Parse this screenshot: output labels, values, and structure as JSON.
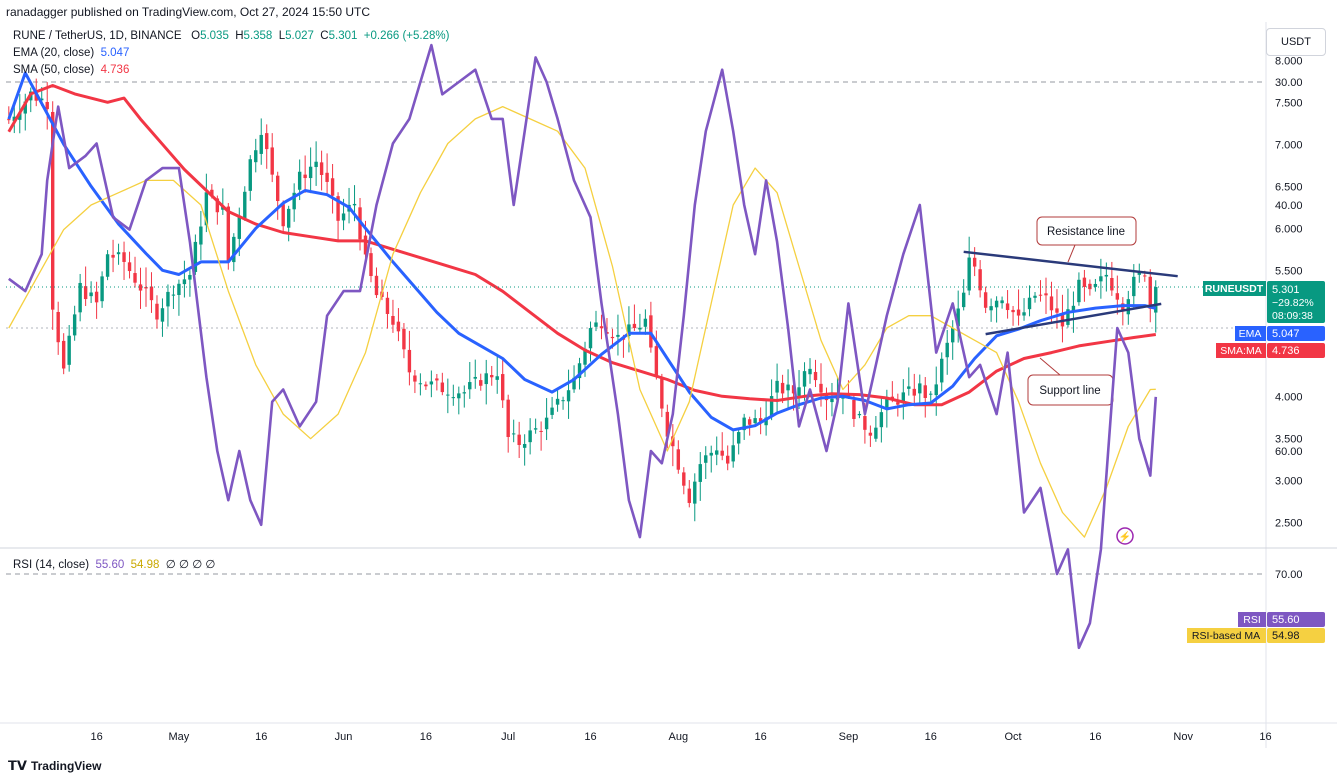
{
  "header": {
    "publisher": "ranadagger published on TradingView.com, Oct 27, 2024 15:50 UTC"
  },
  "legend": {
    "symbol": "RUNE / TetherUS, 1D, BINANCE",
    "o_label": "O",
    "o": "5.035",
    "h_label": "H",
    "h": "5.358",
    "l_label": "L",
    "l": "5.027",
    "c_label": "C",
    "c": "5.301",
    "change": "+0.266 (+5.28%)",
    "ema_label": "EMA (20, close)",
    "ema_value": "5.047",
    "sma_label": "SMA (50, close)",
    "sma_value": "4.736"
  },
  "currency": "USDT",
  "rsi_legend": {
    "label": "RSI (14, close)",
    "rsi": "55.60",
    "ma": "54.98",
    "extra": "∅ ∅ ∅ ∅"
  },
  "badges": {
    "symbol": "RUNEUSDT",
    "price": "5.301",
    "pct": "−29.82%",
    "countdown": "08:09:38",
    "ema_tag": "EMA",
    "ema": "5.047",
    "sma_tag": "SMA:MA",
    "sma": "4.736",
    "rsi_tag": "RSI",
    "rsi": "55.60",
    "rsima_tag": "RSI-based MA",
    "rsima": "54.98"
  },
  "annotations": {
    "resistance": "Resistance line",
    "support": "Support line"
  },
  "footer": {
    "brand": "TradingView"
  },
  "colors": {
    "up": "#089981",
    "down": "#f23645",
    "ema": "#2962ff",
    "sma": "#f23645",
    "rsi": "#7e57c2",
    "rsi_ma": "#f5d041",
    "trend": "#2a3a7a"
  },
  "chart_data": {
    "type": "candlestick",
    "price_axis": {
      "ticks": [
        8.0,
        7.5,
        7.0,
        6.5,
        6.0,
        5.5,
        5.0,
        4.5,
        4.0,
        3.5,
        3.0,
        2.5
      ],
      "tick_labels": [
        "8.000",
        "7.500",
        "7.000",
        "6.500",
        "6.000",
        "5.500",
        "",
        "",
        "4.000",
        "3.500",
        "3.000",
        "2.500"
      ]
    },
    "rsi_axis": {
      "ticks": [
        70,
        60,
        50,
        40,
        30
      ],
      "tick_labels": [
        "70.00",
        "60.00",
        "",
        "40.00",
        "30.00"
      ],
      "band": [
        30,
        70
      ]
    },
    "x_labels": [
      {
        "day": 16,
        "label": "16"
      },
      {
        "day": 31,
        "label": "May"
      },
      {
        "day": 46,
        "label": "16"
      },
      {
        "day": 61,
        "label": "Jun"
      },
      {
        "day": 76,
        "label": "16"
      },
      {
        "day": 91,
        "label": "Jul"
      },
      {
        "day": 106,
        "label": "16"
      },
      {
        "day": 122,
        "label": "Aug"
      },
      {
        "day": 137,
        "label": "16"
      },
      {
        "day": 153,
        "label": "Sep"
      },
      {
        "day": 168,
        "label": "16"
      },
      {
        "day": 183,
        "label": "Oct"
      },
      {
        "day": 198,
        "label": "16"
      },
      {
        "day": 214,
        "label": "Nov"
      },
      {
        "day": 229,
        "label": "16"
      }
    ],
    "close_points": [
      [
        0,
        7.3
      ],
      [
        4,
        7.6
      ],
      [
        7,
        7.5
      ],
      [
        8,
        5.1
      ],
      [
        10,
        4.3
      ],
      [
        13,
        5.3
      ],
      [
        16,
        5.1
      ],
      [
        18,
        5.7
      ],
      [
        21,
        5.6
      ],
      [
        24,
        5.3
      ],
      [
        27,
        5.0
      ],
      [
        30,
        5.3
      ],
      [
        33,
        5.45
      ],
      [
        36,
        6.4
      ],
      [
        39,
        6.2
      ],
      [
        40,
        5.6
      ],
      [
        44,
        6.8
      ],
      [
        46,
        7.2
      ],
      [
        48,
        6.6
      ],
      [
        50,
        6.1
      ],
      [
        53,
        6.6
      ],
      [
        56,
        6.8
      ],
      [
        58,
        6.5
      ],
      [
        60,
        6.1
      ],
      [
        63,
        6.3
      ],
      [
        65,
        5.6
      ],
      [
        67,
        5.2
      ],
      [
        70,
        4.9
      ],
      [
        73,
        4.3
      ],
      [
        76,
        4.15
      ],
      [
        79,
        4.1
      ],
      [
        83,
        4.05
      ],
      [
        86,
        4.2
      ],
      [
        89,
        4.3
      ],
      [
        91,
        3.5
      ],
      [
        93,
        3.45
      ],
      [
        96,
        3.6
      ],
      [
        98,
        3.7
      ],
      [
        100,
        3.9
      ],
      [
        103,
        4.2
      ],
      [
        106,
        4.8
      ],
      [
        108,
        4.9
      ],
      [
        111,
        4.7
      ],
      [
        114,
        4.8
      ],
      [
        116,
        4.9
      ],
      [
        117,
        4.5
      ],
      [
        120,
        3.6
      ],
      [
        122,
        3.2
      ],
      [
        124,
        2.8
      ],
      [
        126,
        3.2
      ],
      [
        129,
        3.4
      ],
      [
        131,
        3.2
      ],
      [
        134,
        3.7
      ],
      [
        137,
        3.7
      ],
      [
        140,
        4.1
      ],
      [
        143,
        4.05
      ],
      [
        146,
        4.4
      ],
      [
        149,
        4.0
      ],
      [
        152,
        4.05
      ],
      [
        155,
        3.7
      ],
      [
        157,
        3.6
      ],
      [
        160,
        3.9
      ],
      [
        163,
        4.0
      ],
      [
        166,
        4.1
      ],
      [
        168,
        3.95
      ],
      [
        170,
        4.4
      ],
      [
        172,
        4.8
      ],
      [
        174,
        5.2
      ],
      [
        175,
        5.6
      ],
      [
        176,
        5.55
      ],
      [
        178,
        5.1
      ],
      [
        181,
        5.2
      ],
      [
        184,
        4.9
      ],
      [
        187,
        5.2
      ],
      [
        189,
        5.15
      ],
      [
        192,
        4.85
      ],
      [
        195,
        5.3
      ],
      [
        197,
        5.2
      ],
      [
        200,
        5.45
      ],
      [
        203,
        5.1
      ],
      [
        205,
        5.35
      ],
      [
        207,
        5.5
      ],
      [
        208,
        5.06
      ],
      [
        209,
        5.301
      ]
    ],
    "ema20_points": [
      [
        0,
        7.3
      ],
      [
        3,
        7.85
      ],
      [
        10,
        7.0
      ],
      [
        15,
        6.5
      ],
      [
        20,
        6.05
      ],
      [
        25,
        5.7
      ],
      [
        28,
        5.5
      ],
      [
        31,
        5.45
      ],
      [
        35,
        5.6
      ],
      [
        40,
        5.6
      ],
      [
        45,
        6.0
      ],
      [
        50,
        6.3
      ],
      [
        54,
        6.45
      ],
      [
        58,
        6.4
      ],
      [
        62,
        6.25
      ],
      [
        65,
        6.0
      ],
      [
        70,
        5.6
      ],
      [
        74,
        5.3
      ],
      [
        78,
        5.0
      ],
      [
        82,
        4.75
      ],
      [
        86,
        4.6
      ],
      [
        90,
        4.45
      ],
      [
        94,
        4.2
      ],
      [
        99,
        4.05
      ],
      [
        103,
        4.2
      ],
      [
        108,
        4.5
      ],
      [
        113,
        4.75
      ],
      [
        117,
        4.75
      ],
      [
        120,
        4.45
      ],
      [
        124,
        4.05
      ],
      [
        128,
        3.75
      ],
      [
        132,
        3.6
      ],
      [
        136,
        3.65
      ],
      [
        140,
        3.8
      ],
      [
        144,
        3.9
      ],
      [
        148,
        3.98
      ],
      [
        152,
        4.0
      ],
      [
        156,
        3.95
      ],
      [
        160,
        3.85
      ],
      [
        164,
        3.9
      ],
      [
        168,
        3.92
      ],
      [
        172,
        4.12
      ],
      [
        176,
        4.45
      ],
      [
        180,
        4.72
      ],
      [
        184,
        4.8
      ],
      [
        188,
        4.9
      ],
      [
        193,
        5.0
      ],
      [
        198,
        5.05
      ],
      [
        203,
        5.08
      ],
      [
        207,
        5.08
      ],
      [
        209,
        5.047
      ]
    ],
    "sma50_points": [
      [
        0,
        7.15
      ],
      [
        4,
        7.6
      ],
      [
        8,
        7.7
      ],
      [
        12,
        7.6
      ],
      [
        18,
        7.5
      ],
      [
        21,
        7.55
      ],
      [
        24,
        7.3
      ],
      [
        28,
        7.0
      ],
      [
        32,
        6.7
      ],
      [
        36,
        6.45
      ],
      [
        40,
        6.2
      ],
      [
        45,
        6.05
      ],
      [
        50,
        5.95
      ],
      [
        55,
        5.9
      ],
      [
        60,
        5.85
      ],
      [
        65,
        5.85
      ],
      [
        70,
        5.75
      ],
      [
        75,
        5.65
      ],
      [
        80,
        5.55
      ],
      [
        85,
        5.45
      ],
      [
        90,
        5.25
      ],
      [
        95,
        5.0
      ],
      [
        100,
        4.75
      ],
      [
        105,
        4.55
      ],
      [
        110,
        4.4
      ],
      [
        115,
        4.3
      ],
      [
        120,
        4.2
      ],
      [
        125,
        4.07
      ],
      [
        130,
        4.0
      ],
      [
        135,
        3.97
      ],
      [
        140,
        3.95
      ],
      [
        145,
        4.0
      ],
      [
        150,
        4.03
      ],
      [
        155,
        4.02
      ],
      [
        160,
        3.98
      ],
      [
        165,
        3.9
      ],
      [
        170,
        3.9
      ],
      [
        175,
        4.05
      ],
      [
        180,
        4.3
      ],
      [
        185,
        4.45
      ],
      [
        190,
        4.52
      ],
      [
        195,
        4.6
      ],
      [
        200,
        4.65
      ],
      [
        205,
        4.7
      ],
      [
        209,
        4.736
      ]
    ],
    "rsi_points": [
      [
        0,
        46
      ],
      [
        3,
        47
      ],
      [
        6,
        44
      ],
      [
        7,
        38
      ],
      [
        9,
        32
      ],
      [
        11,
        37
      ],
      [
        14,
        36
      ],
      [
        16,
        35
      ],
      [
        19,
        41
      ],
      [
        22,
        42
      ],
      [
        25,
        38
      ],
      [
        28,
        37
      ],
      [
        31,
        37
      ],
      [
        33,
        43
      ],
      [
        36,
        54
      ],
      [
        38,
        60
      ],
      [
        40,
        64
      ],
      [
        42,
        60
      ],
      [
        44,
        64
      ],
      [
        46,
        66
      ],
      [
        48,
        56
      ],
      [
        50,
        55
      ],
      [
        53,
        58
      ],
      [
        56,
        56
      ],
      [
        58,
        49
      ],
      [
        61,
        47
      ],
      [
        64,
        47
      ],
      [
        67,
        40
      ],
      [
        70,
        35
      ],
      [
        73,
        33
      ],
      [
        75,
        30
      ],
      [
        77,
        27
      ],
      [
        79,
        31
      ],
      [
        82,
        30
      ],
      [
        85,
        29
      ],
      [
        88,
        33
      ],
      [
        90,
        33
      ],
      [
        92,
        40
      ],
      [
        94,
        34
      ],
      [
        96,
        28
      ],
      [
        98,
        30
      ],
      [
        100,
        33
      ],
      [
        103,
        38
      ],
      [
        106,
        41
      ],
      [
        108,
        48
      ],
      [
        111,
        57
      ],
      [
        113,
        64
      ],
      [
        115,
        67
      ],
      [
        117,
        60
      ],
      [
        119,
        61
      ],
      [
        121,
        57
      ],
      [
        123,
        49
      ],
      [
        125,
        40
      ],
      [
        127,
        34
      ],
      [
        130,
        29
      ],
      [
        132,
        34
      ],
      [
        134,
        40
      ],
      [
        136,
        44
      ],
      [
        138,
        38
      ],
      [
        140,
        43
      ],
      [
        142,
        50
      ],
      [
        144,
        58
      ],
      [
        146,
        55
      ],
      [
        149,
        60
      ],
      [
        151,
        56
      ],
      [
        153,
        48
      ],
      [
        156,
        57
      ],
      [
        158,
        53
      ],
      [
        160,
        49
      ],
      [
        163,
        44
      ],
      [
        166,
        40
      ],
      [
        169,
        52
      ],
      [
        172,
        48
      ],
      [
        175,
        54
      ],
      [
        177,
        53
      ],
      [
        180,
        57
      ],
      [
        182,
        52
      ],
      [
        185,
        65
      ],
      [
        188,
        63
      ],
      [
        191,
        70
      ],
      [
        193,
        68
      ],
      [
        195,
        76
      ],
      [
        197,
        74
      ],
      [
        199,
        68
      ],
      [
        202,
        50
      ],
      [
        204,
        52
      ],
      [
        206,
        59
      ],
      [
        208,
        62
      ],
      [
        209,
        55.6
      ]
    ],
    "rsi_ma_points": [
      [
        0,
        50
      ],
      [
        5,
        46
      ],
      [
        10,
        42
      ],
      [
        15,
        40
      ],
      [
        20,
        39
      ],
      [
        25,
        38
      ],
      [
        30,
        38
      ],
      [
        35,
        40
      ],
      [
        40,
        47
      ],
      [
        45,
        53
      ],
      [
        50,
        57
      ],
      [
        55,
        59
      ],
      [
        60,
        57
      ],
      [
        65,
        52
      ],
      [
        70,
        44
      ],
      [
        75,
        39
      ],
      [
        80,
        35
      ],
      [
        85,
        33
      ],
      [
        90,
        32
      ],
      [
        95,
        33
      ],
      [
        100,
        34
      ],
      [
        105,
        37
      ],
      [
        110,
        45
      ],
      [
        115,
        55
      ],
      [
        120,
        60
      ],
      [
        124,
        56
      ],
      [
        128,
        48
      ],
      [
        132,
        40
      ],
      [
        136,
        37
      ],
      [
        140,
        39
      ],
      [
        144,
        45
      ],
      [
        148,
        51
      ],
      [
        152,
        55
      ],
      [
        156,
        53
      ],
      [
        160,
        50
      ],
      [
        164,
        49
      ],
      [
        168,
        49
      ],
      [
        172,
        50
      ],
      [
        176,
        51
      ],
      [
        180,
        52
      ],
      [
        184,
        56
      ],
      [
        188,
        61
      ],
      [
        192,
        65
      ],
      [
        196,
        67
      ],
      [
        200,
        63
      ],
      [
        204,
        58
      ],
      [
        208,
        55
      ],
      [
        209,
        54.98
      ]
    ],
    "resistance_line": [
      [
        174,
        5.72
      ],
      [
        213,
        5.43
      ]
    ],
    "support_line": [
      [
        178,
        4.74
      ],
      [
        210,
        5.1
      ]
    ]
  }
}
